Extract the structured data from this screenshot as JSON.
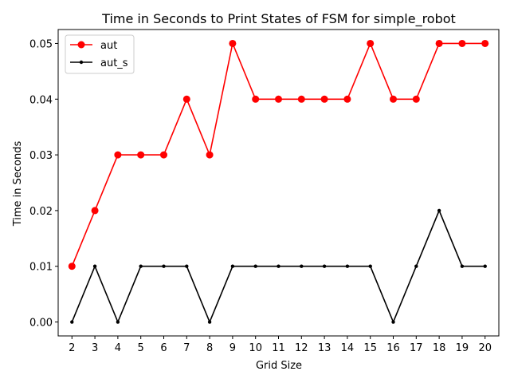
{
  "chart_data": {
    "type": "line",
    "title": "Time in Seconds to Print States of FSM for simple_robot",
    "xlabel": "Grid Size",
    "ylabel": "Time in Seconds",
    "x": [
      2,
      3,
      4,
      5,
      6,
      7,
      8,
      9,
      10,
      11,
      12,
      13,
      14,
      15,
      16,
      17,
      18,
      19,
      20
    ],
    "xlim": [
      1.4,
      20.6
    ],
    "ylim": [
      -0.0025,
      0.0525
    ],
    "yticks": [
      0.0,
      0.01,
      0.02,
      0.03,
      0.04,
      0.05
    ],
    "ytick_labels": [
      "0.00",
      "0.01",
      "0.02",
      "0.03",
      "0.04",
      "0.05"
    ],
    "grid": false,
    "legend_position": "top-left",
    "series": [
      {
        "name": "aut",
        "color": "#ff0000",
        "marker": "circle-large",
        "values": [
          0.01,
          0.02,
          0.03,
          0.03,
          0.03,
          0.04,
          0.03,
          0.05,
          0.04,
          0.04,
          0.04,
          0.04,
          0.04,
          0.05,
          0.04,
          0.04,
          0.05,
          0.05,
          0.05
        ]
      },
      {
        "name": "aut_s",
        "color": "#000000",
        "marker": "circle-small",
        "values": [
          0.0,
          0.01,
          0.0,
          0.01,
          0.01,
          0.01,
          0.0,
          0.01,
          0.01,
          0.01,
          0.01,
          0.01,
          0.01,
          0.01,
          0.0,
          0.01,
          0.02,
          0.01,
          0.01
        ]
      }
    ]
  }
}
